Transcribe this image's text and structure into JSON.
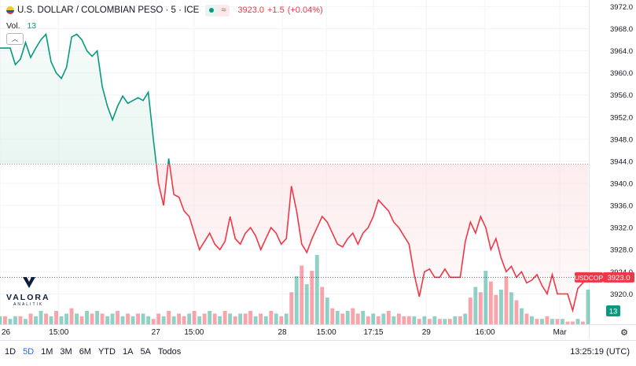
{
  "header": {
    "symbol_text": "U.S. DOLLAR / COLOMBIAN PESO · 5 · ICE",
    "last_price": "3923.0",
    "change": "+1.5",
    "change_pct": "(+0.04%)"
  },
  "volume": {
    "label": "Vol.",
    "value": "13"
  },
  "logo": {
    "name": "VALORA",
    "tagline": "ANALITIK"
  },
  "toolbar": {
    "ranges": [
      "1D",
      "5D",
      "1M",
      "3M",
      "6M",
      "YTD",
      "1A",
      "5A",
      "Todos"
    ],
    "active_range": "5D",
    "clock": "13:25:19 (UTC)"
  },
  "colors": {
    "up": "#089981",
    "down": "#f23645",
    "up_fill": "#d8efe6",
    "down_fill": "#fbdde0",
    "grid": "#f0f3fa",
    "axis_text": "#131722"
  },
  "chart_data": {
    "type": "line",
    "baseline": 3943.5,
    "y_ticks": [
      3920.0,
      3924.0,
      3928.0,
      3932.0,
      3936.0,
      3940.0,
      3944.0,
      3948.0,
      3952.0,
      3956.0,
      3960.0,
      3964.0,
      3968.0,
      3972.0
    ],
    "y_tick_labels": [
      "3920.0",
      "3924.0",
      "3928.0",
      "3932.0",
      "3936.0",
      "3940.0",
      "3944.0",
      "3948.0",
      "3952.0",
      "3956.0",
      "3960.0",
      "3964.0",
      "3968.0",
      "3972.0"
    ],
    "ylim": [
      3914.5,
      3973.2
    ],
    "x_tick_labels": [
      "26",
      "15:00",
      "27",
      "15:00",
      "28",
      "15:00",
      "17:15",
      "29",
      "16:00",
      "Mar"
    ],
    "price_label": {
      "symbol": "USDCOP",
      "value": "3923.0"
    },
    "volume_label": "13",
    "price": [
      3964.5,
      3964.5,
      3964.5,
      3961.5,
      3962.5,
      3965.5,
      3962.8,
      3964.5,
      3966.0,
      3967.0,
      3962.0,
      3960.0,
      3959.0,
      3961.0,
      3966.5,
      3967.0,
      3966.0,
      3964.0,
      3963.0,
      3964.0,
      3957.5,
      3954.0,
      3951.5,
      3954.0,
      3955.8,
      3954.5,
      3955.0,
      3955.5,
      3955.0,
      3956.5,
      3948.0,
      3940.0,
      3936.0,
      3944.5,
      3938.0,
      3937.5,
      3935.0,
      3934.0,
      3931.0,
      3928.0,
      3929.5,
      3931.0,
      3929.0,
      3928.0,
      3929.5,
      3934.0,
      3930.0,
      3929.0,
      3931.0,
      3932.0,
      3930.5,
      3928.0,
      3930.0,
      3932.0,
      3931.0,
      3929.0,
      3930.0,
      3939.5,
      3935.0,
      3929.0,
      3927.5,
      3930.0,
      3932.0,
      3934.0,
      3933.0,
      3931.0,
      3929.0,
      3928.5,
      3930.0,
      3931.0,
      3929.0,
      3931.0,
      3932.0,
      3934.0,
      3937.0,
      3936.0,
      3935.0,
      3933.0,
      3932.0,
      3930.5,
      3929.0,
      3923.5,
      3919.5,
      3924.0,
      3924.5,
      3923.0,
      3923.0,
      3924.5,
      3923.0,
      3923.0,
      3923.0,
      3929.5,
      3933.0,
      3931.0,
      3934.0,
      3932.0,
      3928.0,
      3930.0,
      3926.5,
      3924.0,
      3925.0,
      3923.0,
      3924.0,
      3922.0,
      3922.5,
      3923.5,
      3921.5,
      3920.0,
      3923.5,
      3920.0,
      3920.0,
      3920.0,
      3917.0,
      3921.0,
      3922.0,
      3923.0
    ],
    "volume": [
      3,
      3,
      2,
      3,
      3,
      2,
      4,
      3,
      5,
      4,
      3,
      5,
      3,
      4,
      6,
      4,
      3,
      5,
      4,
      5,
      4,
      3,
      4,
      5,
      3,
      4,
      3,
      4,
      4,
      3,
      2,
      4,
      3,
      5,
      3,
      4,
      3,
      4,
      5,
      3,
      4,
      5,
      4,
      3,
      5,
      4,
      3,
      4,
      4,
      5,
      3,
      4,
      3,
      5,
      4,
      3,
      4,
      12,
      18,
      22,
      15,
      20,
      26,
      14,
      10,
      6,
      5,
      4,
      5,
      6,
      4,
      5,
      3,
      4,
      3,
      4,
      5,
      3,
      4,
      3,
      3,
      3,
      2,
      3,
      2,
      3,
      2,
      2,
      2,
      3,
      3,
      4,
      10,
      14,
      12,
      20,
      16,
      11,
      13,
      18,
      12,
      9,
      6,
      4,
      3,
      2,
      2,
      3,
      2,
      2,
      2,
      1,
      1,
      2,
      1,
      13
    ],
    "volume_up": [
      true,
      false,
      true,
      true,
      false,
      true,
      false,
      true,
      true,
      false,
      true,
      false,
      true,
      true,
      false,
      true,
      false,
      true,
      false,
      true,
      false,
      true,
      true,
      false,
      true,
      false,
      true,
      false,
      true,
      true,
      false,
      false,
      true,
      false,
      true,
      false,
      false,
      true,
      false,
      true,
      false,
      true,
      false,
      true,
      false,
      true,
      false,
      true,
      false,
      false,
      true,
      false,
      true,
      false,
      true,
      false,
      true,
      false,
      true,
      false,
      true,
      false,
      true,
      false,
      true,
      false,
      true,
      false,
      true,
      false,
      false,
      true,
      false,
      true,
      false,
      true,
      false,
      true,
      false,
      false,
      false,
      true,
      false,
      true,
      false,
      true,
      false,
      true,
      false,
      true,
      false,
      true,
      false,
      true,
      false,
      true,
      false,
      false,
      true,
      false,
      true,
      false,
      true,
      false,
      true,
      false,
      true,
      false,
      true,
      false,
      true,
      false,
      false,
      true,
      false,
      true
    ]
  }
}
